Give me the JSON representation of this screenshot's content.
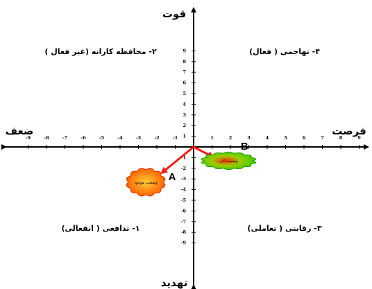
{
  "axes": {
    "top": "قوت",
    "bottom": "تهدید",
    "left": "ضعف",
    "right": "فرصت",
    "x_ticks": [
      -9,
      -8,
      -7,
      -6,
      -5,
      -4,
      -3,
      -2,
      -1,
      1,
      2,
      3,
      4,
      5,
      6,
      7,
      8,
      9
    ],
    "y_ticks": [
      9,
      8,
      7,
      6,
      5,
      4,
      3,
      2,
      1,
      -1,
      -2,
      -3,
      -4,
      -5,
      -6,
      -7,
      -8,
      -9
    ]
  },
  "quadrants": {
    "q1": "۴- تهاجمی ( فعال)",
    "q2": "۲- محافظه کارانه (غیر فعال )",
    "q3": "۱- تدافعی ( انفعالی)",
    "q4": "۳- رقابتی ( تعاملی)"
  },
  "points": [
    {
      "id": "A",
      "label": "A",
      "x": -2.6,
      "y": -3.3,
      "blob_text": "وضعیت موجود",
      "color": "#ff5a00"
    },
    {
      "id": "B",
      "label": "B",
      "x": 1.9,
      "y": -1.3,
      "blob_text": "وضعیت آتی",
      "color": "#33cc00"
    }
  ],
  "colors": {
    "arrow": "#ff1a1a",
    "axis": "#000000"
  }
}
